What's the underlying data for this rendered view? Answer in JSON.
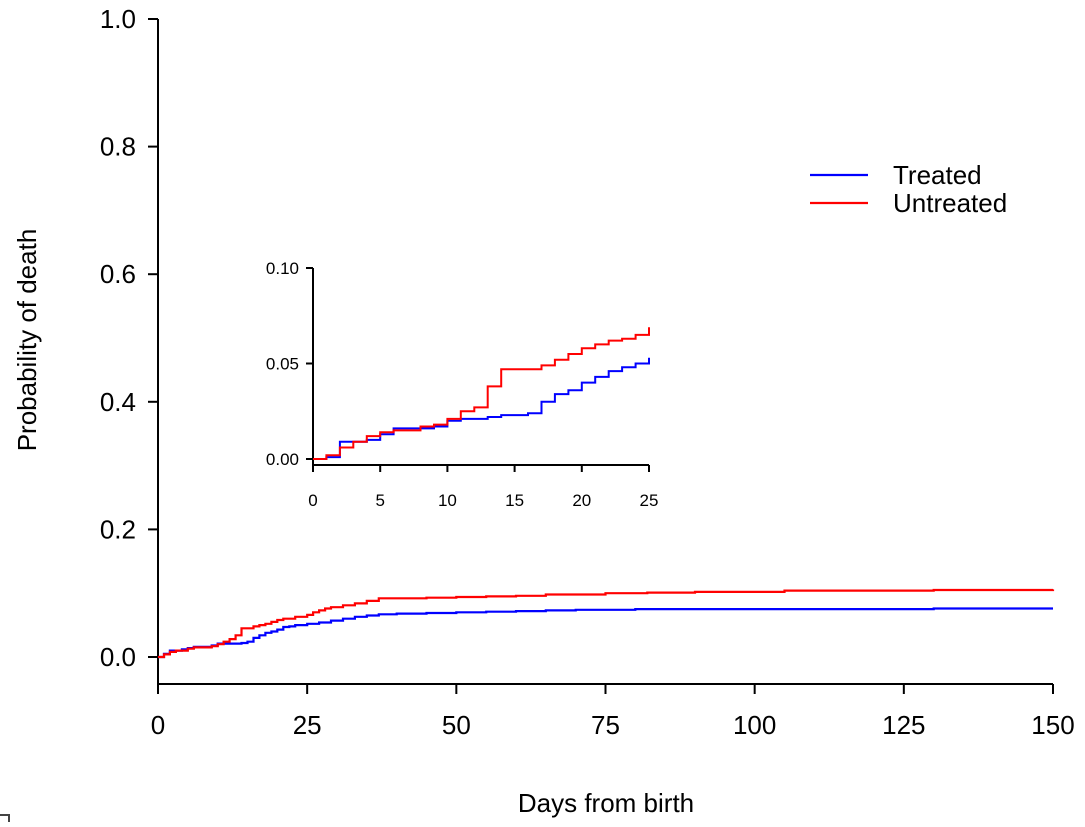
{
  "chart_data": [
    {
      "type": "line",
      "step": true,
      "title": "",
      "xlabel": "Days from birth",
      "ylabel": "Probability of death",
      "xlim": [
        0,
        150
      ],
      "ylim": [
        0,
        1
      ],
      "x_ticks": [
        "0",
        "25",
        "50",
        "75",
        "100",
        "125",
        "150"
      ],
      "y_ticks": [
        "0.0",
        "0.2",
        "0.4",
        "0.6",
        "0.8",
        "1.0"
      ],
      "grid": false,
      "legend": "right",
      "series": [
        {
          "name": "Treated",
          "color": "#0000ff",
          "points": [
            [
              0,
              0
            ],
            [
              1,
              0.005
            ],
            [
              2,
              0.01
            ],
            [
              4,
              0.012
            ],
            [
              5,
              0.014
            ],
            [
              6,
              0.016
            ],
            [
              9,
              0.018
            ],
            [
              10,
              0.021
            ],
            [
              12,
              0.021
            ],
            [
              14,
              0.022
            ],
            [
              15,
              0.024
            ],
            [
              16,
              0.03
            ],
            [
              17,
              0.034
            ],
            [
              18,
              0.038
            ],
            [
              19,
              0.04
            ],
            [
              20,
              0.043
            ],
            [
              21,
              0.047
            ],
            [
              22,
              0.048
            ],
            [
              23,
              0.05
            ],
            [
              25,
              0.052
            ],
            [
              27,
              0.054
            ],
            [
              29,
              0.057
            ],
            [
              31,
              0.06
            ],
            [
              33,
              0.063
            ],
            [
              35,
              0.065
            ],
            [
              37,
              0.067
            ],
            [
              40,
              0.068
            ],
            [
              45,
              0.069
            ],
            [
              50,
              0.07
            ],
            [
              55,
              0.071
            ],
            [
              60,
              0.072
            ],
            [
              65,
              0.073
            ],
            [
              70,
              0.074
            ],
            [
              80,
              0.075
            ],
            [
              100,
              0.075
            ],
            [
              130,
              0.076
            ],
            [
              150,
              0.076
            ]
          ]
        },
        {
          "name": "Untreated",
          "color": "#ff0000",
          "points": [
            [
              0,
              0
            ],
            [
              1,
              0.004
            ],
            [
              2,
              0.008
            ],
            [
              3,
              0.01
            ],
            [
              5,
              0.013
            ],
            [
              6,
              0.015
            ],
            [
              9,
              0.017
            ],
            [
              10,
              0.02
            ],
            [
              11,
              0.024
            ],
            [
              12,
              0.028
            ],
            [
              13,
              0.034
            ],
            [
              14,
              0.045
            ],
            [
              16,
              0.048
            ],
            [
              17,
              0.05
            ],
            [
              18,
              0.052
            ],
            [
              19,
              0.055
            ],
            [
              20,
              0.058
            ],
            [
              21,
              0.06
            ],
            [
              23,
              0.063
            ],
            [
              25,
              0.066
            ],
            [
              26,
              0.07
            ],
            [
              27,
              0.073
            ],
            [
              28,
              0.076
            ],
            [
              29,
              0.078
            ],
            [
              31,
              0.081
            ],
            [
              33,
              0.084
            ],
            [
              35,
              0.088
            ],
            [
              37,
              0.092
            ],
            [
              45,
              0.093
            ],
            [
              50,
              0.094
            ],
            [
              55,
              0.095
            ],
            [
              60,
              0.096
            ],
            [
              65,
              0.098
            ],
            [
              75,
              0.1
            ],
            [
              82,
              0.101
            ],
            [
              90,
              0.102
            ],
            [
              105,
              0.104
            ],
            [
              130,
              0.105
            ],
            [
              150,
              0.106
            ]
          ]
        }
      ]
    },
    {
      "type": "line",
      "step": true,
      "title": "",
      "xlabel": "",
      "ylabel": "",
      "xlim": [
        0,
        25
      ],
      "ylim": [
        0,
        0.1
      ],
      "x_ticks": [
        "0",
        "5",
        "10",
        "15",
        "20",
        "25"
      ],
      "y_ticks": [
        "0.00",
        "0.05",
        "0.10"
      ],
      "grid": false,
      "series": [
        {
          "color": "#0000ff",
          "points": [
            [
              0,
              0
            ],
            [
              1,
              0.001
            ],
            [
              2,
              0.009
            ],
            [
              4,
              0.01
            ],
            [
              5,
              0.013
            ],
            [
              6,
              0.016
            ],
            [
              9,
              0.017
            ],
            [
              10,
              0.02
            ],
            [
              11,
              0.021
            ],
            [
              13,
              0.022
            ],
            [
              14,
              0.023
            ],
            [
              16,
              0.024
            ],
            [
              17,
              0.03
            ],
            [
              18,
              0.034
            ],
            [
              19,
              0.036
            ],
            [
              20,
              0.04
            ],
            [
              21,
              0.043
            ],
            [
              22,
              0.046
            ],
            [
              23,
              0.048
            ],
            [
              24,
              0.05
            ],
            [
              25,
              0.053
            ]
          ]
        },
        {
          "color": "#ff0000",
          "points": [
            [
              0,
              0
            ],
            [
              1,
              0.002
            ],
            [
              2,
              0.006
            ],
            [
              3,
              0.009
            ],
            [
              4,
              0.012
            ],
            [
              5,
              0.014
            ],
            [
              6,
              0.015
            ],
            [
              8,
              0.017
            ],
            [
              9,
              0.018
            ],
            [
              10,
              0.021
            ],
            [
              11,
              0.025
            ],
            [
              12,
              0.027
            ],
            [
              13,
              0.038
            ],
            [
              14,
              0.047
            ],
            [
              17,
              0.049
            ],
            [
              18,
              0.052
            ],
            [
              19,
              0.055
            ],
            [
              20,
              0.058
            ],
            [
              21,
              0.06
            ],
            [
              22,
              0.062
            ],
            [
              23,
              0.063
            ],
            [
              24,
              0.065
            ],
            [
              25,
              0.069
            ]
          ]
        }
      ]
    }
  ]
}
